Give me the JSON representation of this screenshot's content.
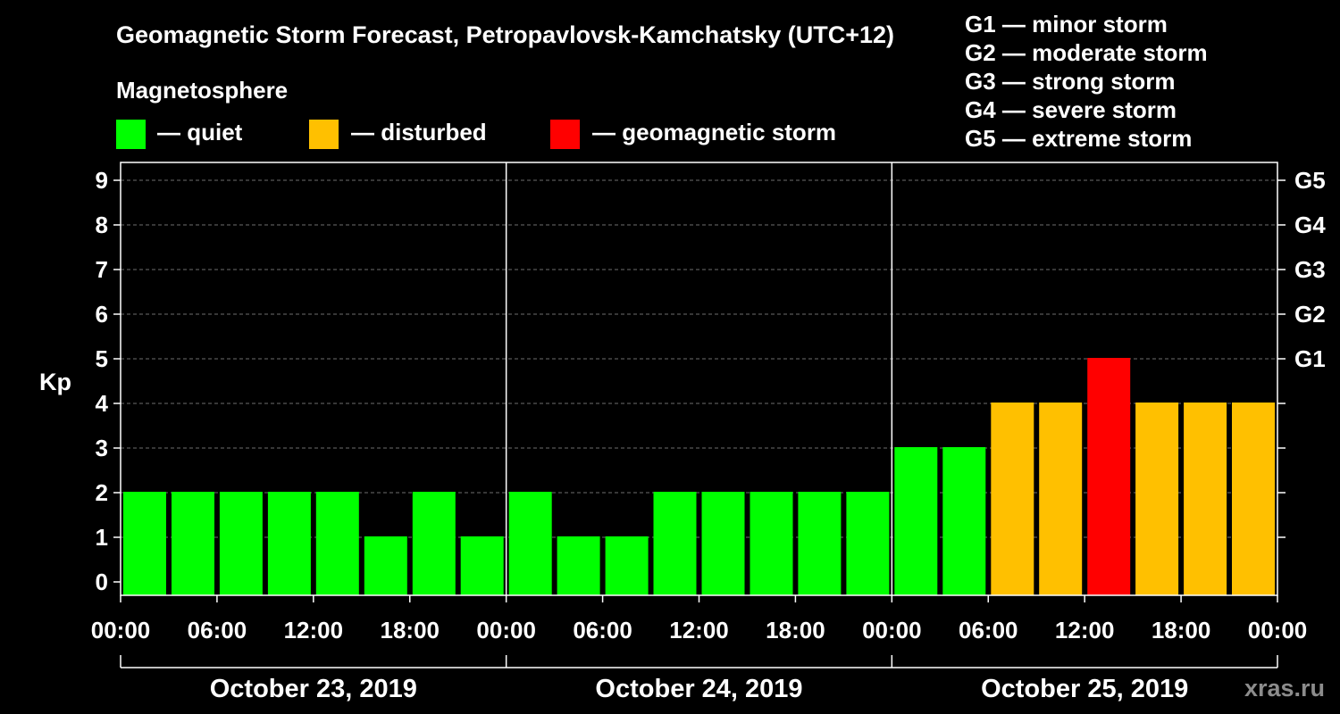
{
  "title": "Geomagnetic Storm Forecast, Petropavlovsk-Kamchatsky (UTC+12)",
  "legend": {
    "heading": "Magnetosphere",
    "items": [
      {
        "label": "— quiet",
        "color": "#00ff00"
      },
      {
        "label": "— disturbed",
        "color": "#ffc000"
      },
      {
        "label": "— geomagnetic storm",
        "color": "#ff0000"
      }
    ]
  },
  "storm_scale": [
    "G1 — minor storm",
    "G2 — moderate storm",
    "G3 — strong storm",
    "G4 — severe storm",
    "G5 — extreme storm"
  ],
  "watermark": "xras.ru",
  "chart_data": {
    "type": "bar",
    "ylabel": "Kp",
    "ylim": [
      0,
      9
    ],
    "yticks": [
      0,
      1,
      2,
      3,
      4,
      5,
      6,
      7,
      8,
      9
    ],
    "right_axis_labels": [
      {
        "kp": 5,
        "label": "G1"
      },
      {
        "kp": 6,
        "label": "G2"
      },
      {
        "kp": 7,
        "label": "G3"
      },
      {
        "kp": 8,
        "label": "G4"
      },
      {
        "kp": 9,
        "label": "G5"
      }
    ],
    "grid": "horizontal dashed",
    "xticks": [
      "00:00",
      "06:00",
      "12:00",
      "18:00",
      "00:00",
      "06:00",
      "12:00",
      "18:00",
      "00:00",
      "06:00",
      "12:00",
      "18:00",
      "00:00"
    ],
    "days": [
      "October 23, 2019",
      "October 24, 2019",
      "October 25, 2019"
    ],
    "interval_hours": 3,
    "values": [
      2,
      2,
      2,
      2,
      2,
      1,
      2,
      1,
      2,
      1,
      1,
      2,
      2,
      2,
      2,
      2,
      3,
      3,
      4,
      4,
      5,
      4,
      4,
      4
    ],
    "colors": {
      "quiet": "#00ff00",
      "disturbed": "#ffc000",
      "storm": "#ff0000"
    }
  }
}
